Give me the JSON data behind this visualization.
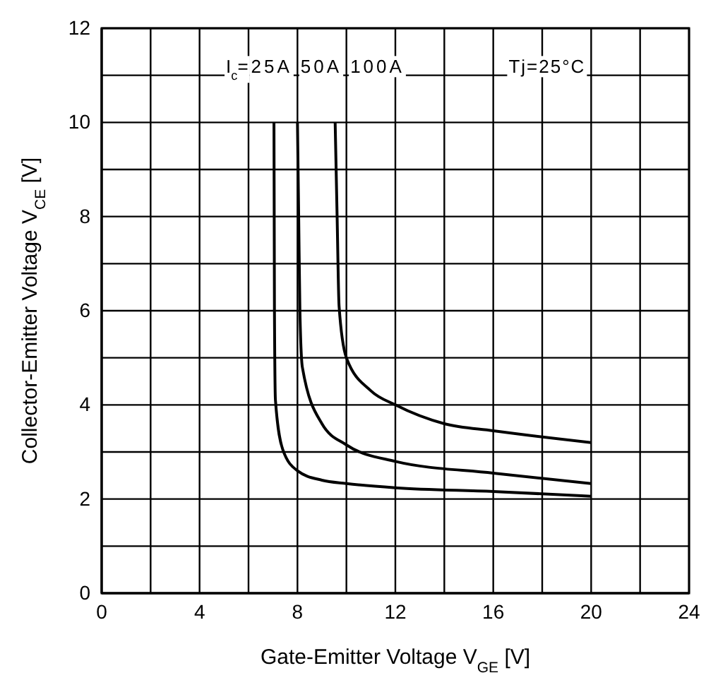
{
  "chart_data": {
    "type": "line",
    "xlabel": "Gate-Emitter Voltage V$_{GE}$ [V]",
    "ylabel": "Collector-Emitter Voltage V$_{CE}$ [V]",
    "xlim": [
      0,
      24
    ],
    "ylim": [
      0,
      12
    ],
    "xticks": [
      0,
      {
        "value": 2,
        "label": null
      },
      4,
      {
        "value": 6,
        "label": null
      },
      8,
      {
        "value": 10,
        "label": null
      },
      12,
      {
        "value": 14,
        "label": null
      },
      16,
      {
        "value": 18,
        "label": null
      },
      20,
      {
        "value": 22,
        "label": null
      },
      24
    ],
    "yticks": [
      0,
      {
        "value": 1,
        "label": null
      },
      2,
      {
        "value": 3,
        "label": null
      },
      4,
      {
        "value": 5,
        "label": null
      },
      6,
      {
        "value": 7,
        "label": null
      },
      8,
      {
        "value": 9,
        "label": null
      },
      10,
      {
        "value": 11,
        "label": null
      },
      12
    ],
    "grid": true,
    "marker": "none",
    "line_style": "solid",
    "annotations": [
      "I$_{c}$=",
      "Tj=25°C"
    ],
    "series": [
      {
        "name": "25A",
        "color": "#000000",
        "x": [
          7.04,
          7.06,
          7.1,
          7.4,
          8,
          9,
          10,
          12,
          16,
          20
        ],
        "values": [
          10,
          6,
          4.1,
          3.05,
          2.6,
          2.4,
          2.33,
          2.24,
          2.16,
          2.06
        ]
      },
      {
        "name": "50A",
        "color": "#000000",
        "x": [
          8,
          8.05,
          8.1,
          8.2,
          9,
          10,
          12,
          16,
          20
        ],
        "values": [
          10,
          8,
          6,
          4.8,
          3.6,
          3.15,
          2.8,
          2.55,
          2.33
        ]
      },
      {
        "name": "100A",
        "color": "#000000",
        "x": [
          9.54,
          9.62,
          9.7,
          10,
          11,
          12,
          14,
          16,
          20
        ],
        "values": [
          10,
          8,
          6.1,
          5,
          4.3,
          4,
          3.6,
          3.45,
          3.2
        ]
      }
    ]
  }
}
